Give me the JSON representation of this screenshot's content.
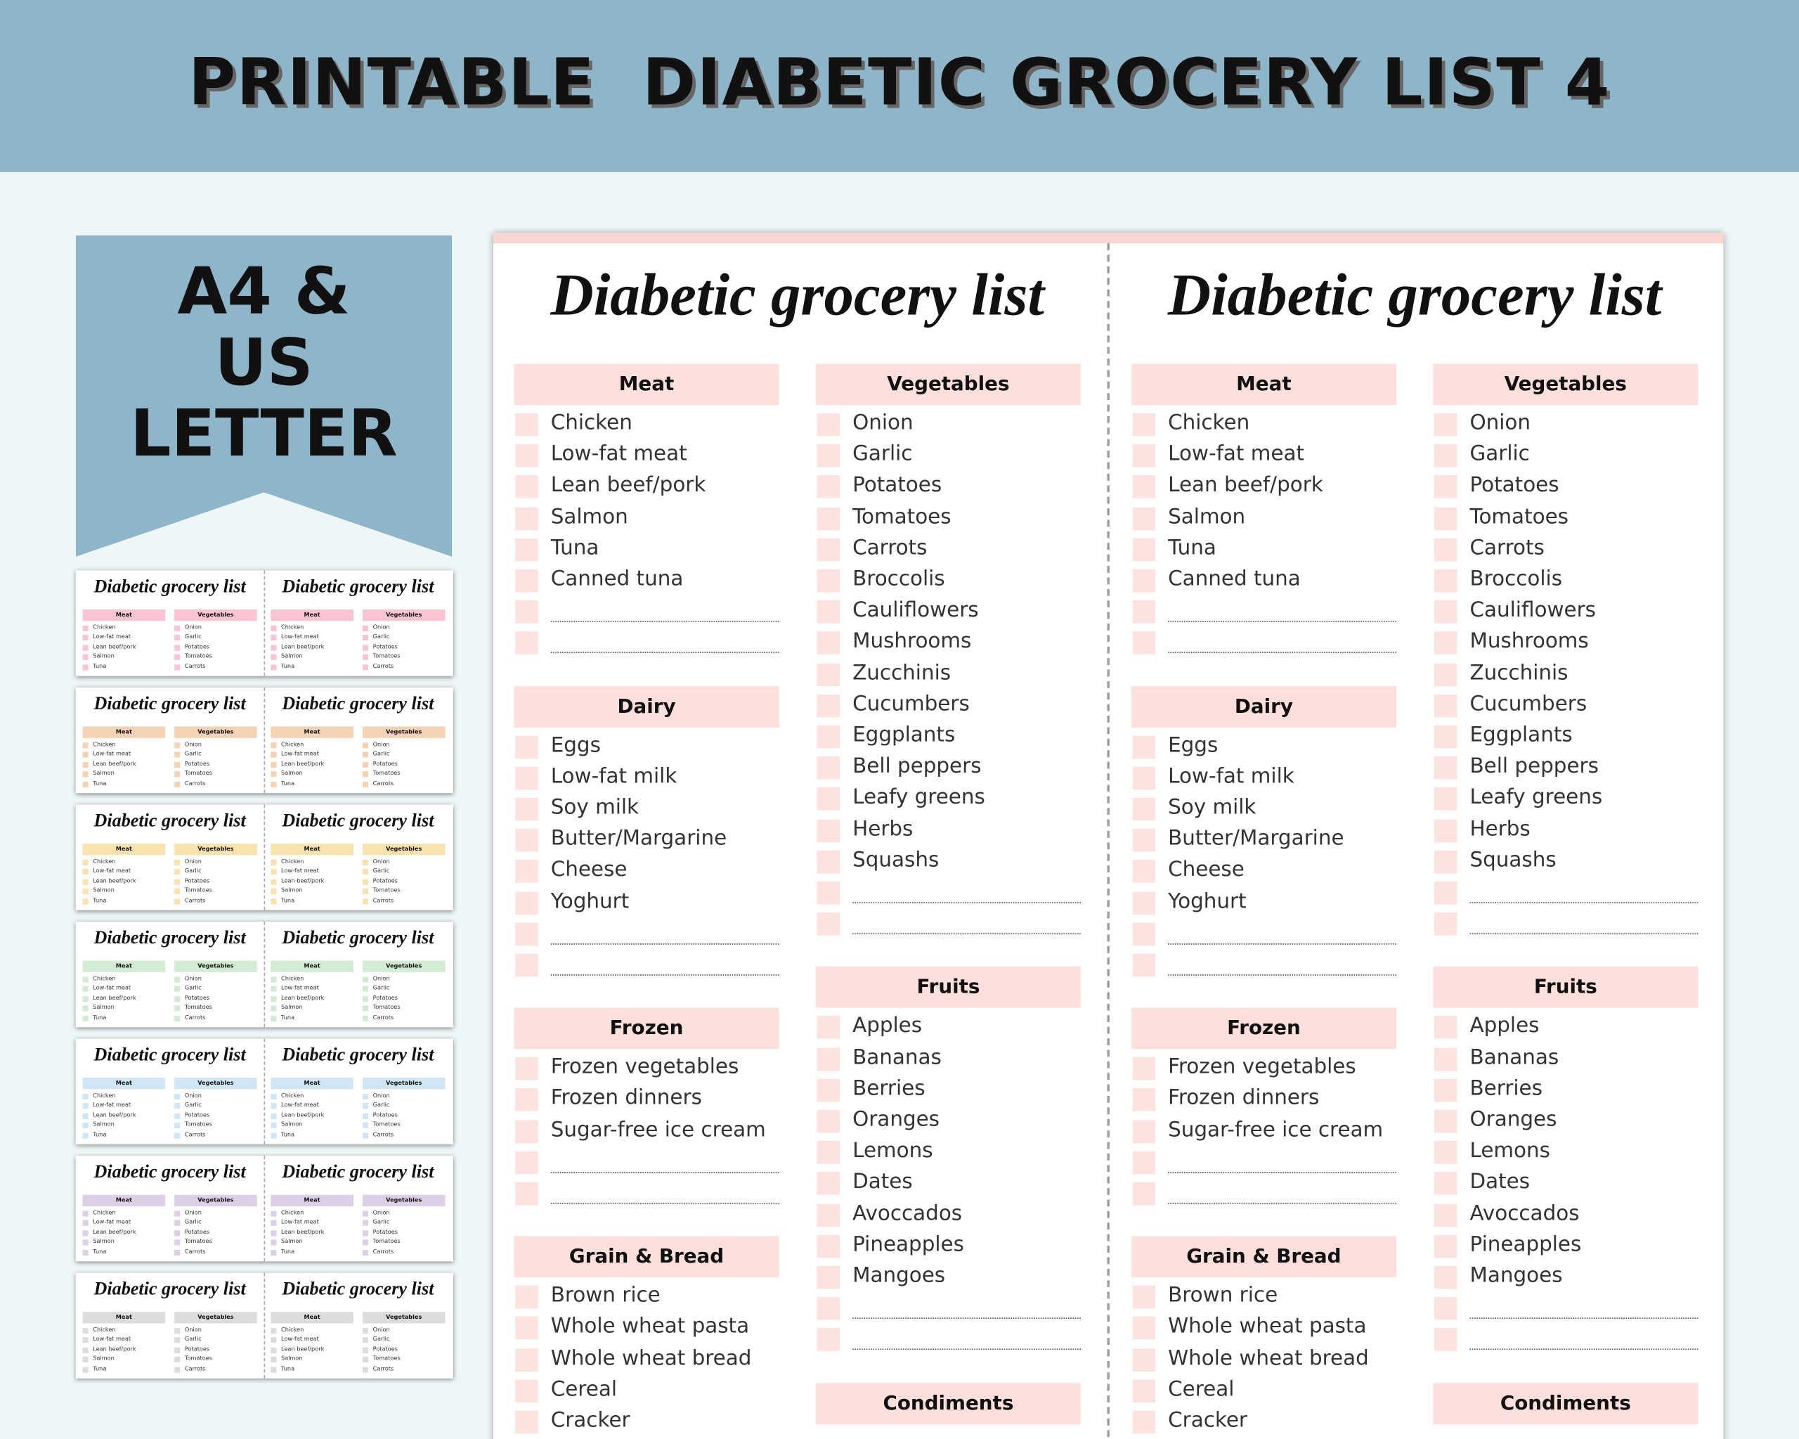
{
  "header": {
    "title": "PRINTABLE  DIABETIC GROCERY LIST 4"
  },
  "badge": {
    "lines": [
      "A4 &",
      "US",
      "LETTER"
    ]
  },
  "list": {
    "title": "Diabetic grocery list",
    "columns": [
      [
        {
          "name": "Meat",
          "items": [
            "Chicken",
            "Low-fat meat",
            "Lean beef/pork",
            "Salmon",
            "Tuna",
            "Canned tuna"
          ]
        },
        {
          "name": "Dairy",
          "items": [
            "Eggs",
            "Low-fat milk",
            "Soy milk",
            "Butter/Margarine",
            "Cheese",
            "Yoghurt"
          ]
        },
        {
          "name": "Frozen",
          "items": [
            "Frozen vegetables",
            "Frozen dinners",
            "Sugar-free ice cream"
          ]
        },
        {
          "name": "Grain & Bread",
          "items": [
            "Brown rice",
            "Whole wheat pasta",
            "Whole wheat bread",
            "Cereal",
            "Cracker"
          ]
        }
      ],
      [
        {
          "name": "Vegetables",
          "items": [
            "Onion",
            "Garlic",
            "Potatoes",
            "Tomatoes",
            "Carrots",
            "Broccolis",
            "Cauliflowers",
            "Mushrooms",
            "Zucchinis",
            "Cucumbers",
            "Eggplants",
            "Bell peppers",
            "Leafy greens",
            "Herbs",
            "Squashs"
          ]
        },
        {
          "name": "Fruits",
          "items": [
            "Apples",
            "Bananas",
            "Berries",
            "Oranges",
            "Lemons",
            "Dates",
            "Avoccados",
            "Pineapples",
            "Mangoes"
          ]
        },
        {
          "name": "Condiments",
          "items": []
        }
      ]
    ]
  },
  "thumbnail_colors": [
    "#f9c5d3",
    "#f4d3b4",
    "#f8e2ad",
    "#d3ead3",
    "#cfe6f3",
    "#ddd0e6",
    "#dcdcdc"
  ]
}
